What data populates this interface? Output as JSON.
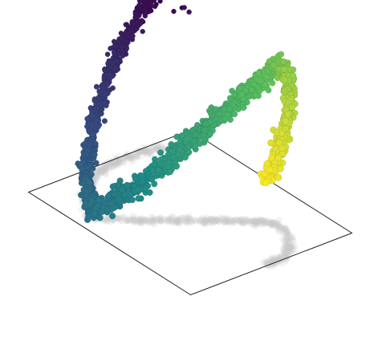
{
  "chart_data": {
    "type": "scatter",
    "title": "",
    "xlabel": "",
    "ylabel": "",
    "zlabel": "",
    "colormap": "viridis",
    "color_stops": [
      "#440154",
      "#3b528b",
      "#21918c",
      "#5ec962",
      "#fde725"
    ],
    "shadow_color": "#c8c8c8",
    "floor_edge_color": "#222222",
    "axis_ranges": {
      "x": [
        -1,
        1
      ],
      "y": [
        -1,
        1
      ],
      "z": [
        0,
        1
      ]
    },
    "grid": false,
    "legend": "none",
    "series": [
      {
        "name": "",
        "points_per_unit": 360,
        "color_value_range": [
          0,
          1
        ],
        "path": [
          {
            "x": 0.92,
            "y": 0.6,
            "z": 0.98
          },
          {
            "x": 0.95,
            "y": 0.35,
            "z": 0.85
          },
          {
            "x": 0.97,
            "y": 0.05,
            "z": 0.62
          },
          {
            "x": 0.9,
            "y": -0.25,
            "z": 0.38
          },
          {
            "x": 0.7,
            "y": -0.6,
            "z": 0.16
          },
          {
            "x": 0.4,
            "y": -0.82,
            "z": 0.04
          },
          {
            "x": 0.15,
            "y": -0.5,
            "z": 0.2
          },
          {
            "x": -0.12,
            "y": -0.05,
            "z": 0.5
          },
          {
            "x": -0.4,
            "y": 0.38,
            "z": 0.8
          },
          {
            "x": -0.55,
            "y": 0.55,
            "z": 0.96
          },
          {
            "x": -0.78,
            "y": 0.45,
            "z": 0.95
          },
          {
            "x": -0.95,
            "y": 0.25,
            "z": 0.8
          },
          {
            "x": -1.0,
            "y": 0.05,
            "z": 0.6
          },
          {
            "x": -0.95,
            "y": -0.05,
            "z": 0.48
          }
        ]
      }
    ]
  }
}
